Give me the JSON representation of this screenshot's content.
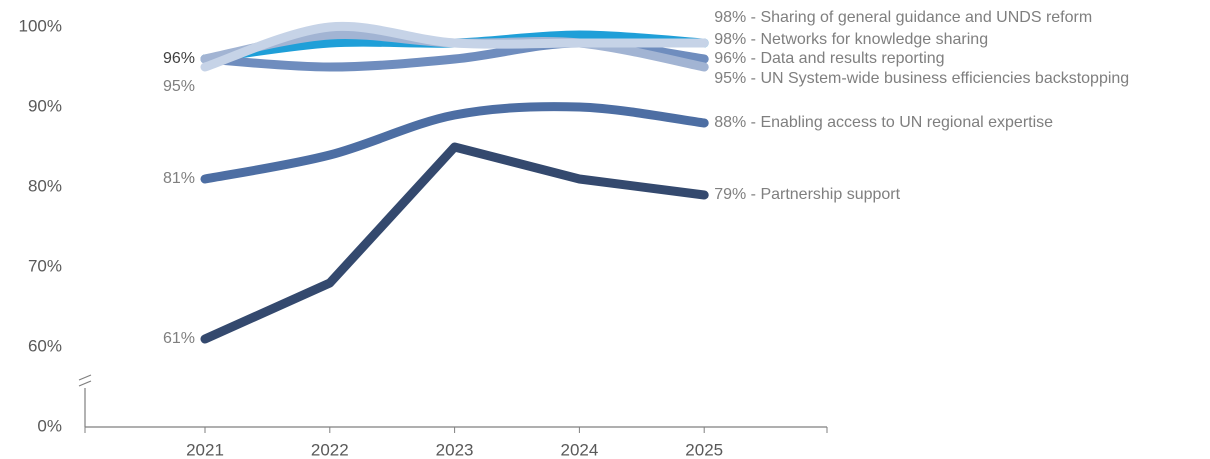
{
  "chart_data": {
    "type": "line",
    "categories": [
      "2021",
      "2022",
      "2023",
      "2024",
      "2025"
    ],
    "ylim": [
      0,
      100
    ],
    "axis_break": [
      0,
      60
    ],
    "yticks": [
      {
        "value": 0,
        "label": "0%"
      },
      {
        "value": 60,
        "label": "60%"
      },
      {
        "value": 70,
        "label": "70%"
      },
      {
        "value": 80,
        "label": "80%"
      },
      {
        "value": 90,
        "label": "90%"
      },
      {
        "value": 100,
        "label": "100%"
      }
    ],
    "label_separator": " - ",
    "series": [
      {
        "name": "Sharing of general guidance and UNDS reform",
        "color": "#1f9fd8",
        "smooth": true,
        "values": [
          96,
          98,
          98,
          99,
          98
        ],
        "value_labels": [
          null,
          null,
          null,
          null,
          "98%"
        ]
      },
      {
        "name": "Networks for knowledge sharing",
        "color": "#c6d3e7",
        "smooth": true,
        "values": [
          95,
          100,
          98,
          98,
          98
        ],
        "value_labels": [
          "95%",
          null,
          null,
          null,
          "98%"
        ]
      },
      {
        "name": "Data and results reporting",
        "color": "#6f8dbe",
        "smooth": true,
        "values": [
          96,
          95,
          96,
          98,
          96
        ],
        "value_labels": [
          "96%",
          null,
          null,
          null,
          "96%"
        ]
      },
      {
        "name": "UN System-wide business efficiencies backstopping",
        "color": "#a2b4d3",
        "smooth": true,
        "values": [
          96,
          99,
          98,
          98,
          95
        ],
        "value_labels": [
          null,
          null,
          null,
          null,
          "95%"
        ]
      },
      {
        "name": "Enabling access to UN regional expertise",
        "color": "#4d6ea3",
        "smooth": true,
        "values": [
          81,
          84,
          89,
          90,
          88
        ],
        "value_labels": [
          "81%",
          null,
          null,
          null,
          "88%"
        ]
      },
      {
        "name": "Partnership support",
        "color": "#34496e",
        "smooth": false,
        "values": [
          61,
          68,
          85,
          81,
          79
        ],
        "value_labels": [
          "61%",
          null,
          null,
          null,
          "79%"
        ]
      }
    ]
  }
}
